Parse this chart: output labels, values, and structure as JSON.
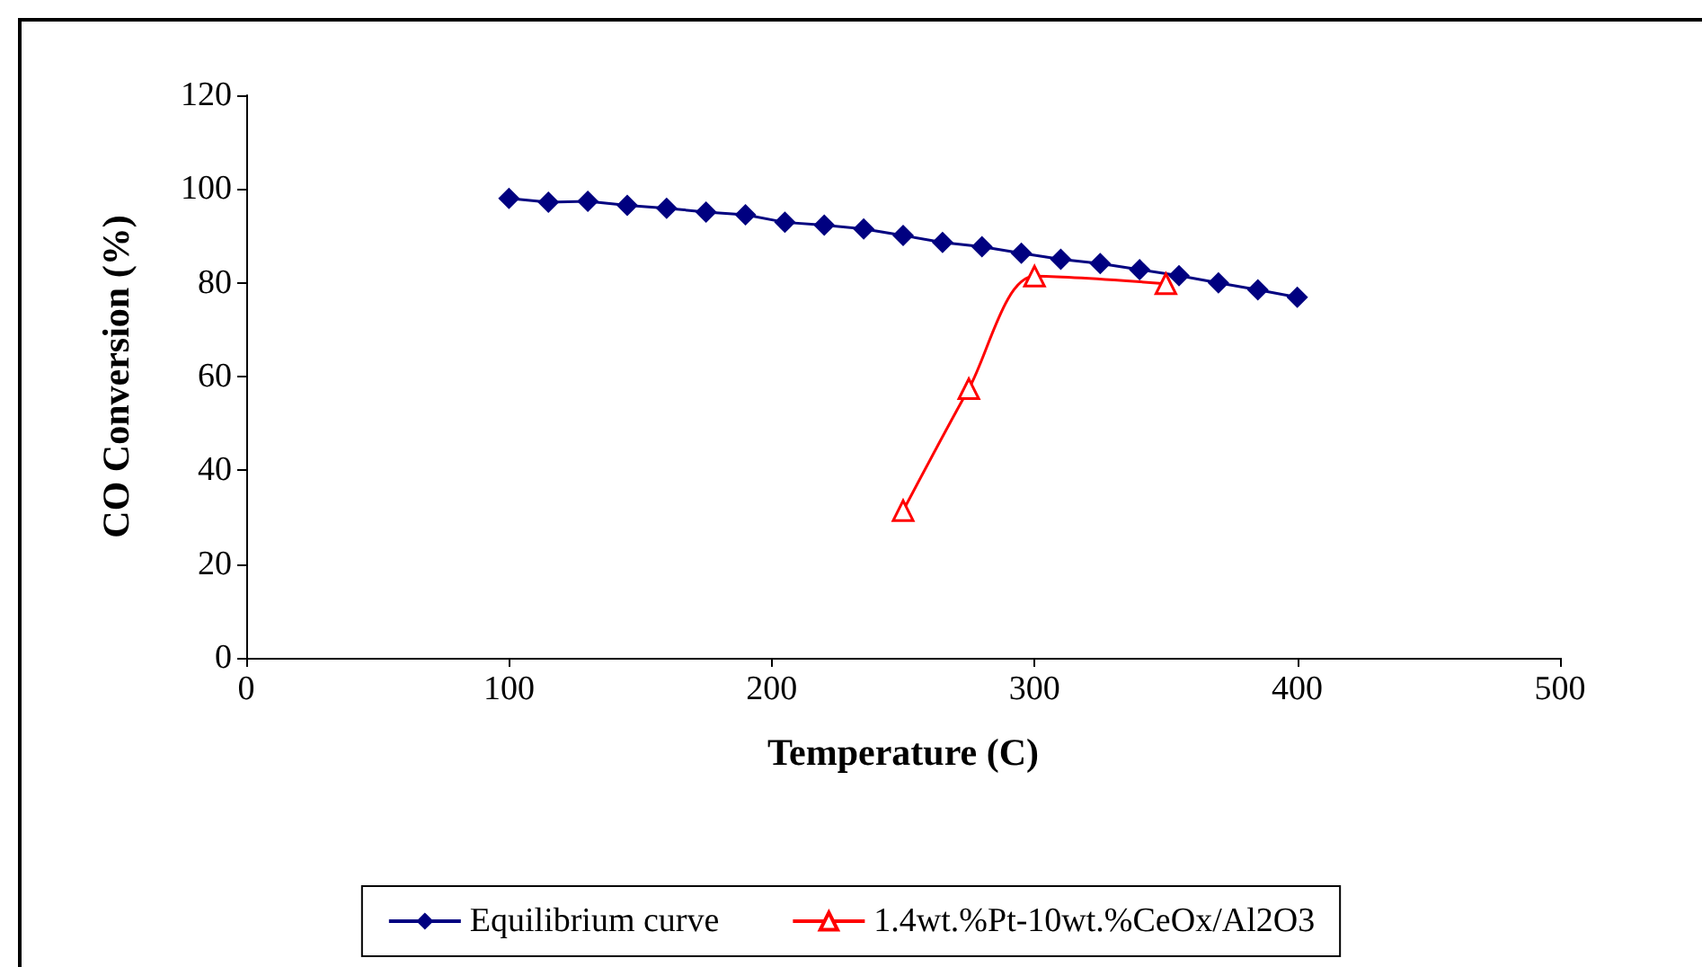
{
  "chart_data": {
    "type": "line",
    "xlabel": "Temperature (C)",
    "ylabel": "CO Conversion (%)",
    "xlim": [
      0,
      500
    ],
    "xticks": [
      0,
      100,
      200,
      300,
      400,
      500
    ],
    "ylim": [
      0,
      120
    ],
    "yticks": [
      0,
      20,
      40,
      60,
      80,
      100,
      120
    ],
    "grid": false,
    "legend": "bottom",
    "series": [
      {
        "name": "Equilibrium curve",
        "color": "#000080",
        "marker": "diamond",
        "x": [
          100,
          115,
          130,
          145,
          160,
          175,
          190,
          205,
          220,
          235,
          250,
          265,
          280,
          295,
          310,
          325,
          340,
          355,
          370,
          385,
          400
        ],
        "values": [
          98,
          97.2,
          97.4,
          96.5,
          95.9,
          95.1,
          94.5,
          92.9,
          92.3,
          91.5,
          90.1,
          88.6,
          87.7,
          86.3,
          85,
          84.1,
          82.8,
          81.5,
          80,
          78.5,
          76.9
        ]
      },
      {
        "name": "1.4wt.%Pt-10wt.%CeOx/Al2O3",
        "color": "#ff0000",
        "marker": "triangle",
        "x": [
          250,
          275,
          300,
          350
        ],
        "values": [
          31.4,
          57.4,
          81.4,
          79.8
        ]
      }
    ]
  }
}
